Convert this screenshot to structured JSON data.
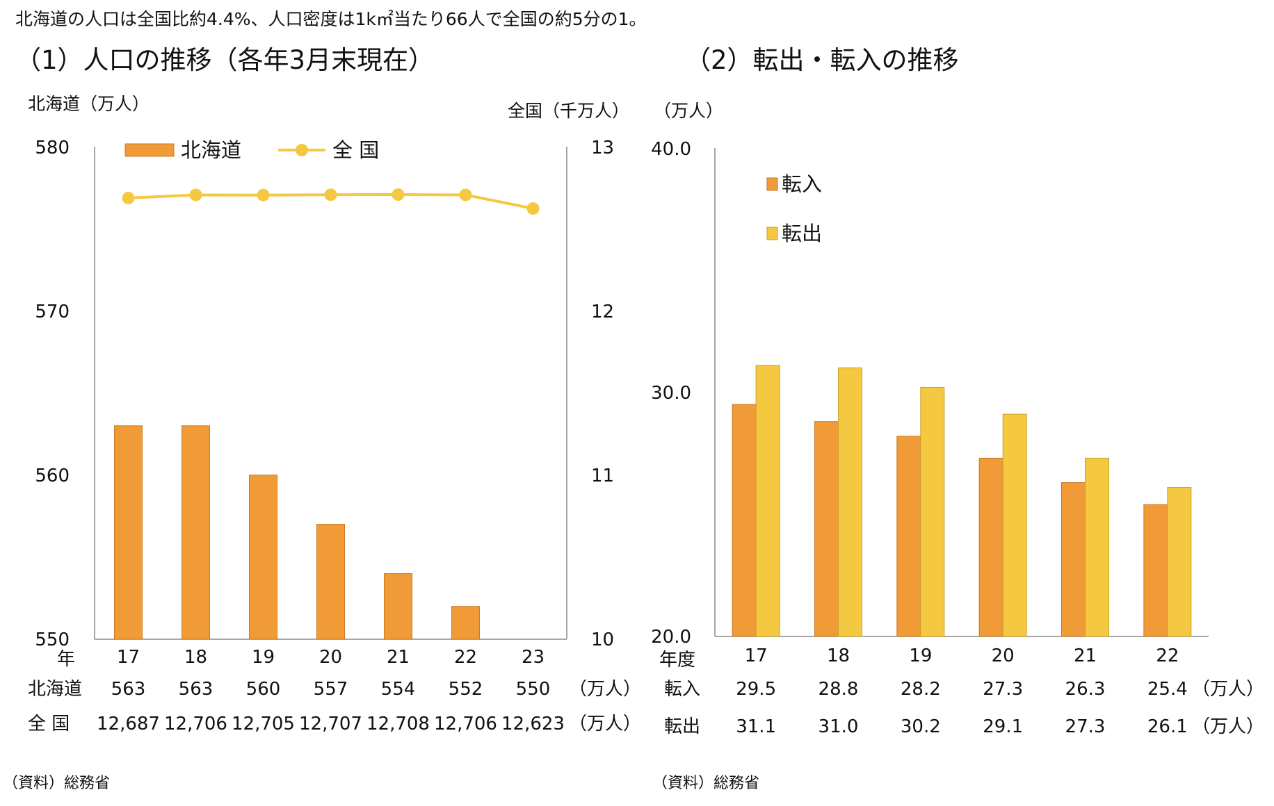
{
  "header": "北海道の人口は全国比約4.4%、人口密度は1k㎡当たり66人で全国の約5分の1。",
  "colors": {
    "hokkaido": "#F09B38",
    "national": "#F5C842",
    "tennyu": "#F09B38",
    "tenshutsu": "#F5C842",
    "axis": "#888888"
  },
  "chart_data": [
    {
      "type": "bar",
      "title": "（1）人口の推移（各年3月末現在）",
      "ylabel_left": "北海道（万人）",
      "ylabel_right": "全国（千万人）",
      "ylim_left": [
        550,
        580
      ],
      "ylim_right": [
        10,
        13
      ],
      "yticks_left": [
        "580",
        "570",
        "560",
        "550"
      ],
      "yticks_right": [
        "13",
        "12",
        "11",
        "10"
      ],
      "x_label": "年",
      "categories": [
        "17",
        "18",
        "19",
        "20",
        "21",
        "22",
        "23"
      ],
      "series": [
        {
          "name": "北海道",
          "type": "bar",
          "axis": "left",
          "values": [
            563,
            563,
            560,
            557,
            554,
            552,
            550
          ]
        },
        {
          "name": "全 国",
          "type": "line",
          "axis": "right",
          "values": [
            12.687,
            12.706,
            12.705,
            12.707,
            12.708,
            12.706,
            12.623
          ]
        }
      ],
      "table": [
        {
          "label": "北海道",
          "values": [
            "563",
            "563",
            "560",
            "557",
            "554",
            "552",
            "550"
          ],
          "unit": "（万人）"
        },
        {
          "label": "全 国",
          "values": [
            "12,687",
            "12,706",
            "12,705",
            "12,707",
            "12,708",
            "12,706",
            "12,623"
          ],
          "unit": "（万人）"
        }
      ],
      "source": "（資料）総務省"
    },
    {
      "type": "bar",
      "title": "（2）転出・転入の推移",
      "ylabel": "（万人）",
      "ylim": [
        20,
        40
      ],
      "yticks": [
        "40.0",
        "30.0",
        "20.0"
      ],
      "x_label": "年度",
      "categories": [
        "17",
        "18",
        "19",
        "20",
        "21",
        "22"
      ],
      "series": [
        {
          "name": "転入",
          "values": [
            29.5,
            28.8,
            28.2,
            27.3,
            26.3,
            25.4
          ]
        },
        {
          "name": "転出",
          "values": [
            31.1,
            31.0,
            30.2,
            29.1,
            27.3,
            26.1
          ]
        }
      ],
      "table": [
        {
          "label": "転入",
          "values": [
            "29.5",
            "28.8",
            "28.2",
            "27.3",
            "26.3",
            "25.4"
          ],
          "unit": "（万人）"
        },
        {
          "label": "転出",
          "values": [
            "31.1",
            "31.0",
            "30.2",
            "29.1",
            "27.3",
            "26.1"
          ],
          "unit": "（万人）"
        }
      ],
      "source": "（資料）総務省"
    }
  ]
}
